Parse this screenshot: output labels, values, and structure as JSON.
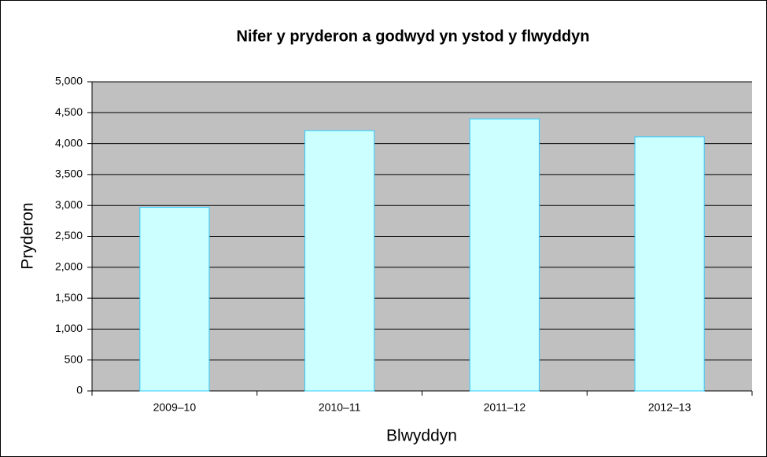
{
  "chart_data": {
    "type": "bar",
    "title": "Nifer y pryderon a godwyd yn ystod y flwyddyn",
    "categories": [
      "2009–10",
      "2010–11",
      "2011–12",
      "2012–13"
    ],
    "values": [
      2970,
      4210,
      4400,
      4110
    ],
    "color": "#ccffff",
    "x_label": "Blwyddyn",
    "y_label": "Pryderon",
    "ylim": [
      0,
      5000
    ],
    "yticks": [
      0,
      500,
      {
        "value": 1000,
        "label": "1,000"
      },
      {
        "value": 1500,
        "label": "1,500"
      },
      {
        "value": 2000,
        "label": "2,000"
      },
      {
        "value": 2500,
        "label": "2,500"
      },
      {
        "value": 3000,
        "label": "3,000"
      },
      {
        "value": 3500,
        "label": "3,500"
      },
      {
        "value": 4000,
        "label": "4,000"
      },
      {
        "value": 4500,
        "label": "4,500"
      },
      {
        "value": 5000,
        "label": "5,000"
      }
    ],
    "grid": true
  }
}
